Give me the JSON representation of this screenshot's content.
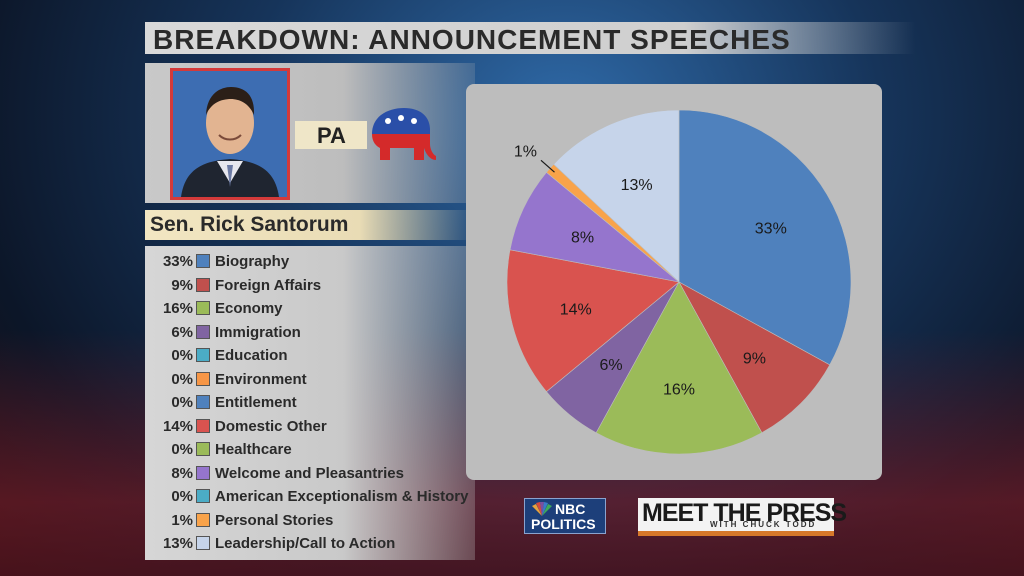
{
  "title": "BREAKDOWN: ANNOUNCEMENT SPEECHES",
  "profile": {
    "state": "PA",
    "name": "Sen. Rick Santorum"
  },
  "logos": {
    "nbc_line1": "NBC",
    "nbc_line2": "POLITICS",
    "mtp_main": "MEET THE PRESS",
    "mtp_sub": "WITH CHUCK TODD"
  },
  "colors": {
    "biography": "#4f81bd",
    "foreign_affairs": "#c0504d",
    "economy": "#9bbb59",
    "immigration": "#8064a2",
    "education": "#4bacc6",
    "environment": "#f79646",
    "entitlement": "#4f81bd",
    "domestic_other": "#d9534f",
    "healthcare": "#9bbb59",
    "welcome": "#9575cd",
    "exceptionalism": "#4bacc6",
    "personal_stories": "#f9a34a",
    "leadership": "#c6d4ea"
  },
  "chart_data": {
    "type": "pie",
    "title": "BREAKDOWN: ANNOUNCEMENT SPEECHES",
    "categories": [
      "Biography",
      "Foreign Affairs",
      "Economy",
      "Immigration",
      "Education",
      "Environment",
      "Entitlement",
      "Domestic Other",
      "Healthcare",
      "Welcome and Pleasantries",
      "American Exceptionalism & History",
      "Personal Stories",
      "Leadership/Call to Action"
    ],
    "values": [
      33,
      9,
      16,
      6,
      0,
      0,
      0,
      14,
      0,
      8,
      0,
      1,
      13
    ],
    "labels": [
      "33%",
      "9%",
      "16%",
      "6%",
      "0%",
      "0%",
      "0%",
      "14%",
      "0%",
      "8%",
      "0%",
      "1%",
      "13%"
    ],
    "colors": [
      "#4f81bd",
      "#c0504d",
      "#9bbb59",
      "#8064a2",
      "#4bacc6",
      "#f79646",
      "#4f81bd",
      "#d9534f",
      "#9bbb59",
      "#9575cd",
      "#4bacc6",
      "#f9a34a",
      "#c6d4ea"
    ],
    "start_angle": "12 o'clock",
    "direction": "clockwise",
    "legend_placement": "left"
  }
}
